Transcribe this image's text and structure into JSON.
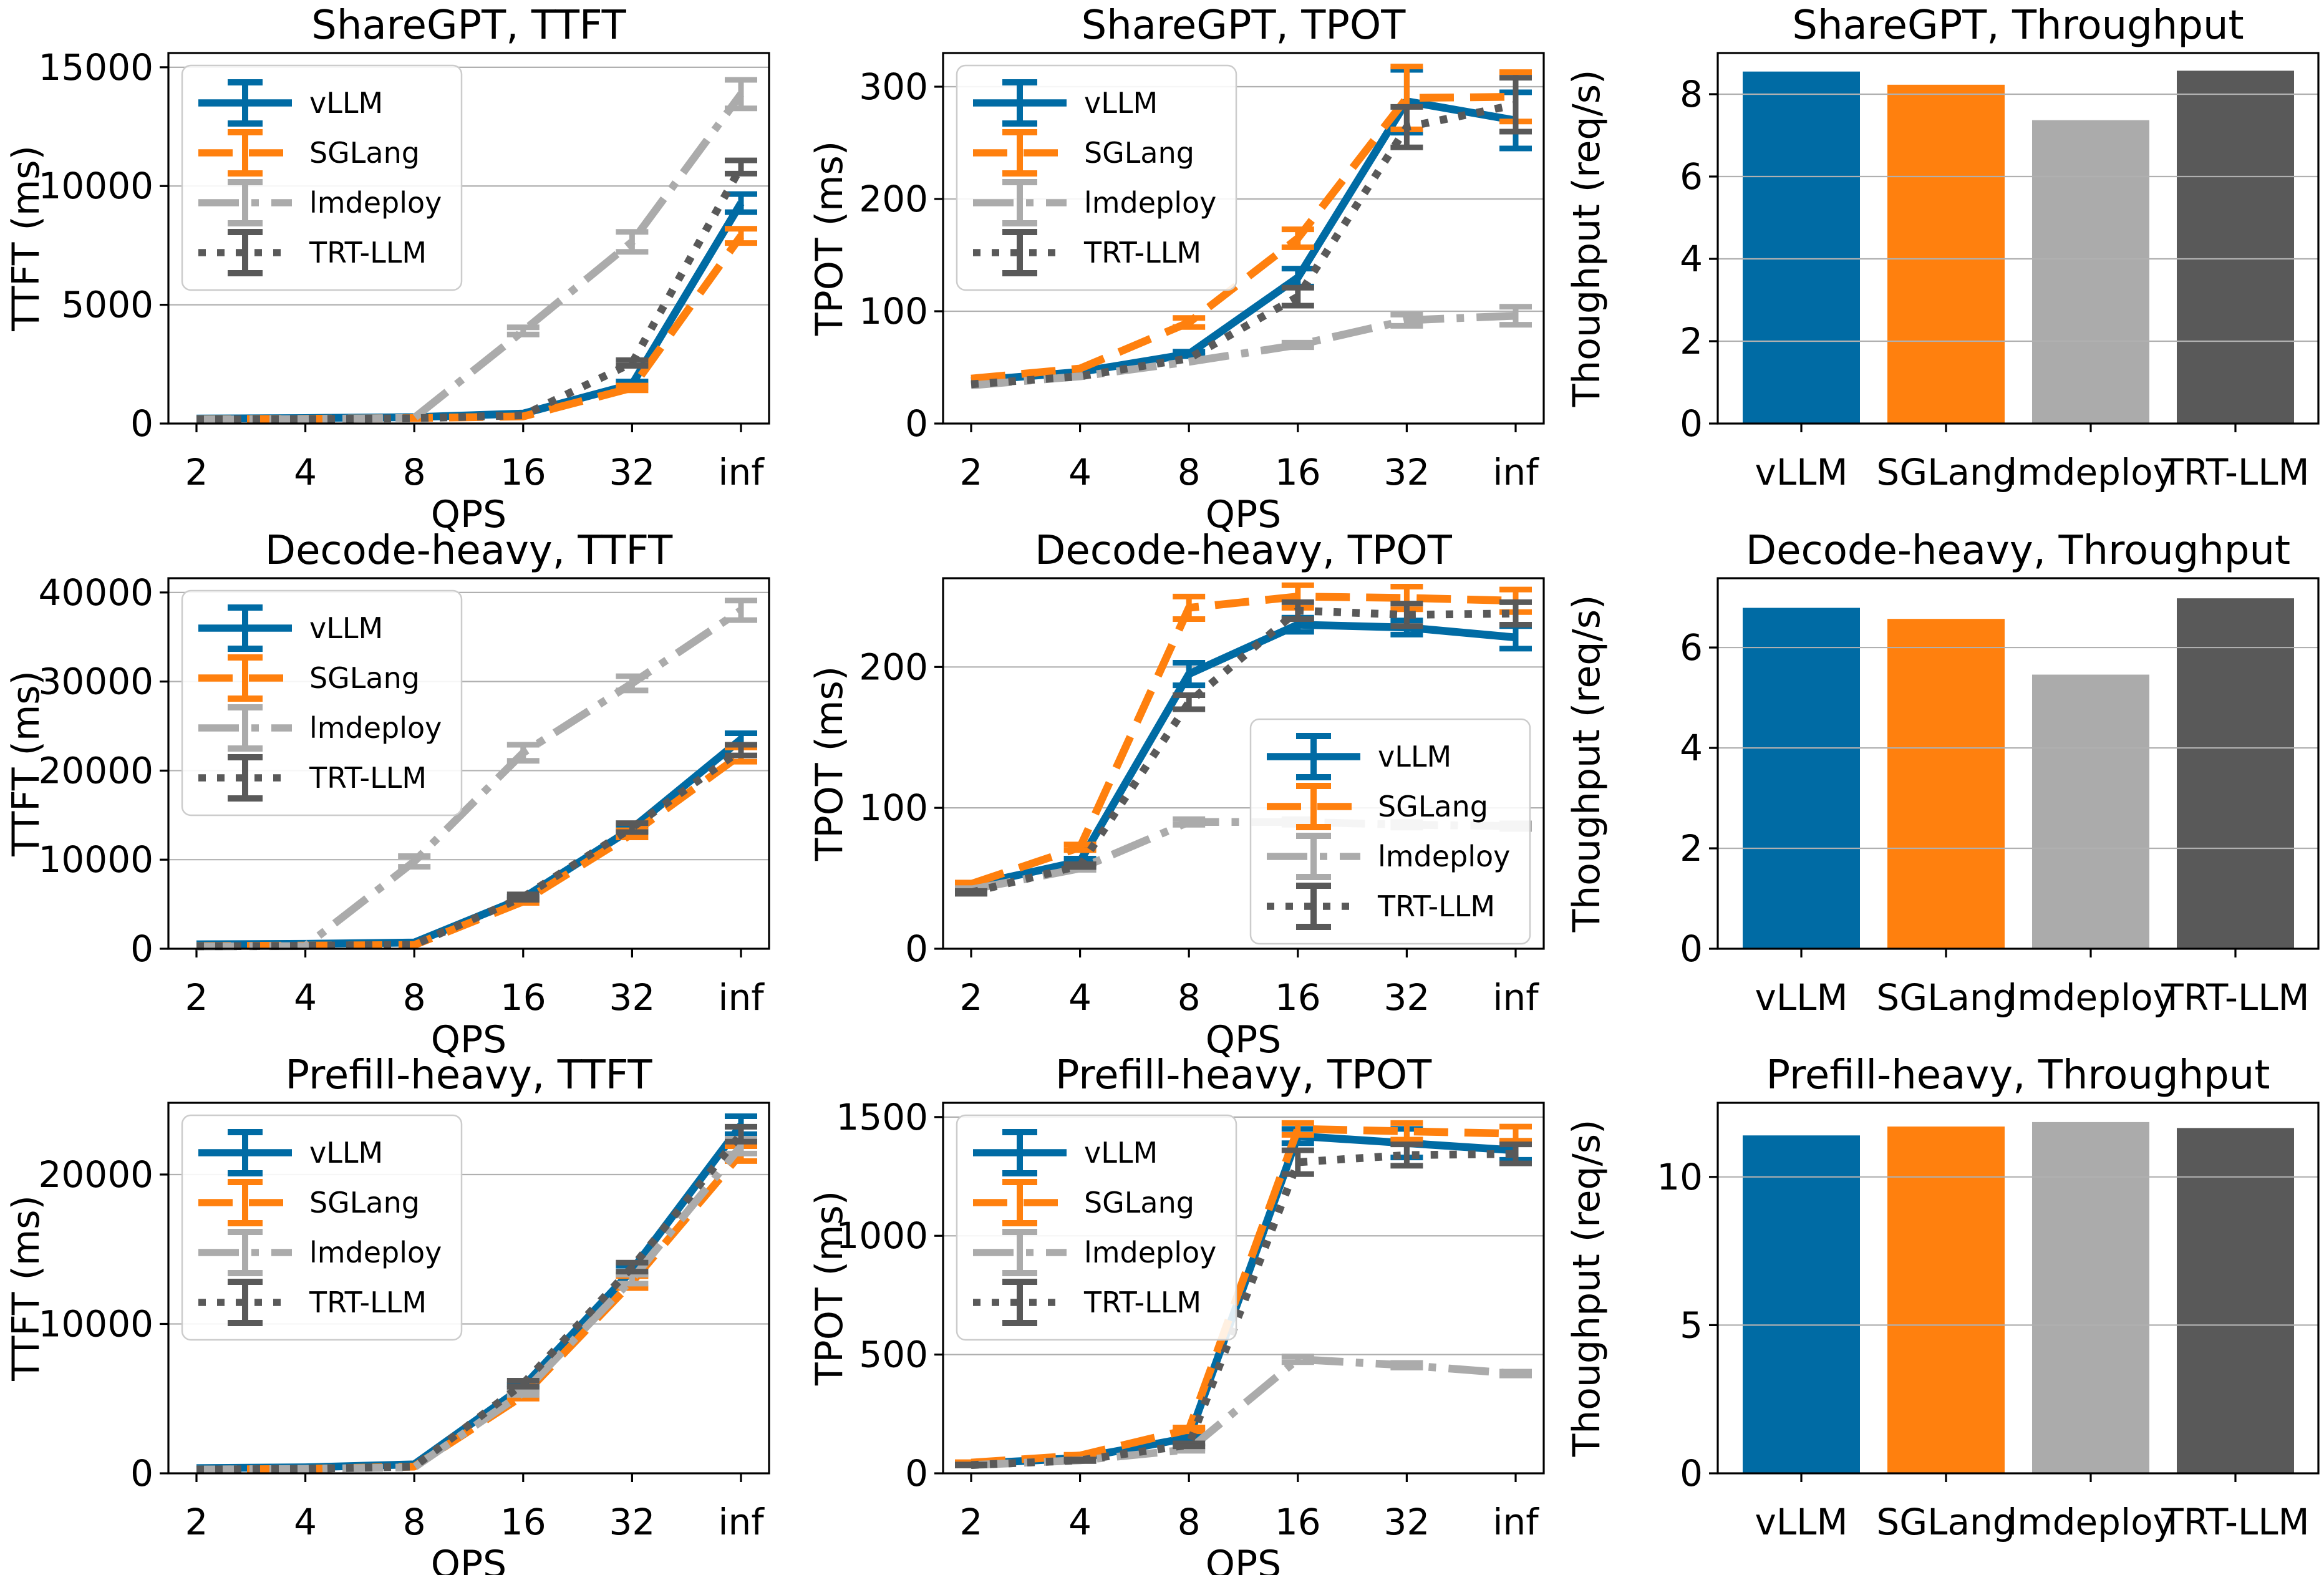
{
  "figure": {
    "background": "#ffffff",
    "grid_color": "#b0b0b0",
    "spine_color": "#000000",
    "legend_border_color": "#cccccc",
    "frameworks": [
      {
        "name": "vLLM",
        "color": "#006BA4",
        "linestyle": "solid"
      },
      {
        "name": "SGLang",
        "color": "#FF800E",
        "linestyle": "dashed"
      },
      {
        "name": "lmdeploy",
        "color": "#ABABAB",
        "linestyle": "dashdot"
      },
      {
        "name": "TRT-LLM",
        "color": "#595959",
        "linestyle": "dotted"
      }
    ]
  },
  "chart_data": [
    {
      "type": "line",
      "title": "ShareGPT, TTFT",
      "xlabel": "QPS",
      "ylabel": "TTFT (ms)",
      "categories": [
        "2",
        "4",
        "8",
        "16",
        "32",
        "inf"
      ],
      "yticks": [
        0,
        5000,
        10000,
        15000
      ],
      "ylim": [
        0,
        15600
      ],
      "grid": true,
      "legend_position": "upper-left",
      "series": [
        {
          "name": "vLLM",
          "color": "#006BA4",
          "linestyle": "solid",
          "values": [
            210,
            230,
            270,
            420,
            1650,
            9280
          ],
          "errors": [
            0,
            0,
            0,
            0,
            120,
            380
          ]
        },
        {
          "name": "SGLang",
          "color": "#FF800E",
          "linestyle": "dashed",
          "values": [
            180,
            200,
            230,
            300,
            1500,
            7900
          ],
          "errors": [
            0,
            0,
            0,
            0,
            100,
            300
          ]
        },
        {
          "name": "lmdeploy",
          "color": "#ABABAB",
          "linestyle": "dashdot",
          "values": [
            170,
            190,
            240,
            3900,
            7650,
            13870
          ],
          "errors": [
            0,
            0,
            0,
            150,
            420,
            600
          ]
        },
        {
          "name": "TRT-LLM",
          "color": "#595959",
          "linestyle": "dotted",
          "values": [
            170,
            190,
            220,
            350,
            2550,
            10800
          ],
          "errors": [
            0,
            0,
            0,
            0,
            120,
            280
          ]
        }
      ]
    },
    {
      "type": "line",
      "title": "ShareGPT, TPOT",
      "xlabel": "QPS",
      "ylabel": "TPOT (ms)",
      "categories": [
        "2",
        "4",
        "8",
        "16",
        "32",
        "inf"
      ],
      "yticks": [
        0,
        100,
        200,
        300
      ],
      "ylim": [
        0,
        330
      ],
      "grid": true,
      "legend_position": "upper-left",
      "series": [
        {
          "name": "vLLM",
          "color": "#006BA4",
          "linestyle": "solid",
          "values": [
            38,
            46,
            62,
            130,
            287,
            270
          ],
          "errors": [
            0,
            0,
            2,
            8,
            28,
            25
          ]
        },
        {
          "name": "SGLang",
          "color": "#FF800E",
          "linestyle": "dashed",
          "values": [
            40,
            49,
            90,
            165,
            290,
            291
          ],
          "errors": [
            0,
            0,
            4,
            8,
            28,
            22
          ]
        },
        {
          "name": "lmdeploy",
          "color": "#ABABAB",
          "linestyle": "dashdot",
          "values": [
            34,
            42,
            55,
            70,
            92,
            96
          ],
          "errors": [
            0,
            0,
            0,
            2,
            5,
            8
          ]
        },
        {
          "name": "TRT-LLM",
          "color": "#595959",
          "linestyle": "dotted",
          "values": [
            35,
            42,
            58,
            113,
            264,
            284
          ],
          "errors": [
            0,
            0,
            0,
            8,
            18,
            24
          ]
        }
      ]
    },
    {
      "type": "bar",
      "title": "ShareGPT, Throughput",
      "ylabel": "Thoughput (req/s)",
      "categories": [
        "vLLM",
        "SGLang",
        "lmdeploy",
        "TRT-LLM"
      ],
      "colors": [
        "#006BA4",
        "#FF800E",
        "#ABABAB",
        "#595959"
      ],
      "values": [
        8.55,
        8.23,
        7.37,
        8.57
      ],
      "yticks": [
        0,
        2,
        4,
        6,
        8
      ],
      "ylim": [
        0,
        9.0
      ],
      "grid": true
    },
    {
      "type": "line",
      "title": "Decode-heavy, TTFT",
      "xlabel": "QPS",
      "ylabel": "TTFT (ms)",
      "categories": [
        "2",
        "4",
        "8",
        "16",
        "32",
        "inf"
      ],
      "yticks": [
        0,
        10000,
        20000,
        30000,
        40000
      ],
      "ylim": [
        0,
        41600
      ],
      "grid": true,
      "legend_position": "upper-left",
      "series": [
        {
          "name": "vLLM",
          "color": "#006BA4",
          "linestyle": "solid",
          "values": [
            500,
            550,
            700,
            5700,
            13500,
            23500
          ],
          "errors": [
            0,
            0,
            0,
            150,
            300,
            700
          ]
        },
        {
          "name": "SGLang",
          "color": "#FF800E",
          "linestyle": "dashed",
          "values": [
            300,
            350,
            420,
            5300,
            12900,
            21800
          ],
          "errors": [
            0,
            0,
            0,
            150,
            400,
            800
          ]
        },
        {
          "name": "lmdeploy",
          "color": "#ABABAB",
          "linestyle": "dashdot",
          "values": [
            250,
            300,
            9800,
            22000,
            29800,
            38000
          ],
          "errors": [
            0,
            0,
            600,
            900,
            800,
            1100
          ]
        },
        {
          "name": "TRT-LLM",
          "color": "#595959",
          "linestyle": "dotted",
          "values": [
            280,
            330,
            450,
            5800,
            13600,
            22300
          ],
          "errors": [
            0,
            0,
            0,
            300,
            500,
            600
          ]
        }
      ]
    },
    {
      "type": "line",
      "title": "Decode-heavy, TPOT",
      "xlabel": "QPS",
      "ylabel": "TPOT (ms)",
      "categories": [
        "2",
        "4",
        "8",
        "16",
        "32",
        "inf"
      ],
      "yticks": [
        0,
        100,
        200
      ],
      "ylim": [
        0,
        263
      ],
      "grid": true,
      "legend_position": "lower-right",
      "series": [
        {
          "name": "vLLM",
          "color": "#006BA4",
          "linestyle": "solid",
          "values": [
            45,
            62,
            195,
            230,
            228,
            221
          ],
          "errors": [
            1,
            2,
            8,
            5,
            5,
            8
          ]
        },
        {
          "name": "SGLang",
          "color": "#FF800E",
          "linestyle": "dashed",
          "values": [
            46,
            72,
            242,
            250,
            249,
            247
          ],
          "errors": [
            1,
            2,
            8,
            8,
            8,
            8
          ]
        },
        {
          "name": "lmdeploy",
          "color": "#ABABAB",
          "linestyle": "dashdot",
          "values": [
            42,
            57,
            90,
            90,
            88,
            87
          ],
          "errors": [
            1,
            1,
            2,
            2,
            2,
            2
          ]
        },
        {
          "name": "TRT-LLM",
          "color": "#595959",
          "linestyle": "dotted",
          "values": [
            40,
            59,
            175,
            240,
            237,
            238
          ],
          "errors": [
            1,
            1,
            5,
            6,
            8,
            8
          ]
        }
      ]
    },
    {
      "type": "bar",
      "title": "Decode-heavy, Throughput",
      "ylabel": "Thoughput (req/s)",
      "categories": [
        "vLLM",
        "SGLang",
        "lmdeploy",
        "TRT-LLM"
      ],
      "colors": [
        "#006BA4",
        "#FF800E",
        "#ABABAB",
        "#595959"
      ],
      "values": [
        6.79,
        6.57,
        5.46,
        6.98
      ],
      "yticks": [
        0,
        2,
        4,
        6
      ],
      "ylim": [
        0,
        7.38
      ],
      "grid": true
    },
    {
      "type": "line",
      "title": "Prefill-heavy, TTFT",
      "xlabel": "QPS",
      "ylabel": "TTFT (ms)",
      "categories": [
        "2",
        "4",
        "8",
        "16",
        "32",
        "inf"
      ],
      "yticks": [
        0,
        10000,
        20000
      ],
      "ylim": [
        0,
        24800
      ],
      "grid": true,
      "legend_position": "upper-left",
      "series": [
        {
          "name": "vLLM",
          "color": "#006BA4",
          "linestyle": "solid",
          "values": [
            350,
            400,
            600,
            5800,
            13600,
            23300
          ],
          "errors": [
            0,
            0,
            0,
            150,
            300,
            600
          ]
        },
        {
          "name": "SGLang",
          "color": "#FF800E",
          "linestyle": "dashed",
          "values": [
            250,
            300,
            450,
            5200,
            12800,
            21400
          ],
          "errors": [
            0,
            0,
            0,
            200,
            400,
            500
          ]
        },
        {
          "name": "lmdeploy",
          "color": "#ABABAB",
          "linestyle": "dashdot",
          "values": [
            250,
            300,
            400,
            5400,
            13000,
            21900
          ],
          "errors": [
            0,
            0,
            0,
            150,
            300,
            500
          ]
        },
        {
          "name": "TRT-LLM",
          "color": "#595959",
          "linestyle": "dotted",
          "values": [
            250,
            300,
            450,
            6000,
            13800,
            22700
          ],
          "errors": [
            0,
            0,
            0,
            200,
            300,
            500
          ]
        }
      ]
    },
    {
      "type": "line",
      "title": "Prefill-heavy, TPOT",
      "xlabel": "QPS",
      "ylabel": "TPOT (ms)",
      "categories": [
        "2",
        "4",
        "8",
        "16",
        "32",
        "inf"
      ],
      "yticks": [
        0,
        500,
        1000,
        1500
      ],
      "ylim": [
        0,
        1560
      ],
      "grid": true,
      "legend_position": "upper-left",
      "series": [
        {
          "name": "vLLM",
          "color": "#006BA4",
          "linestyle": "solid",
          "values": [
            40,
            65,
            150,
            1420,
            1390,
            1360
          ],
          "errors": [
            2,
            3,
            6,
            30,
            60,
            40
          ]
        },
        {
          "name": "SGLang",
          "color": "#FF800E",
          "linestyle": "dashed",
          "values": [
            45,
            75,
            185,
            1450,
            1440,
            1430
          ],
          "errors": [
            2,
            3,
            8,
            25,
            35,
            30
          ]
        },
        {
          "name": "lmdeploy",
          "color": "#ABABAB",
          "linestyle": "dashdot",
          "values": [
            35,
            55,
            100,
            480,
            455,
            420
          ],
          "errors": [
            2,
            3,
            5,
            12,
            10,
            8
          ]
        },
        {
          "name": "TRT-LLM",
          "color": "#595959",
          "linestyle": "dotted",
          "values": [
            35,
            55,
            120,
            1310,
            1340,
            1345
          ],
          "errors": [
            2,
            3,
            6,
            50,
            45,
            40
          ]
        }
      ]
    },
    {
      "type": "bar",
      "title": "Prefill-heavy, Throughput",
      "ylabel": "Thoughput (req/s)",
      "categories": [
        "vLLM",
        "SGLang",
        "lmdeploy",
        "TRT-LLM"
      ],
      "colors": [
        "#006BA4",
        "#FF800E",
        "#ABABAB",
        "#595959"
      ],
      "values": [
        11.4,
        11.7,
        11.85,
        11.65
      ],
      "yticks": [
        0,
        5,
        10
      ],
      "ylim": [
        0,
        12.5
      ],
      "grid": true
    }
  ]
}
